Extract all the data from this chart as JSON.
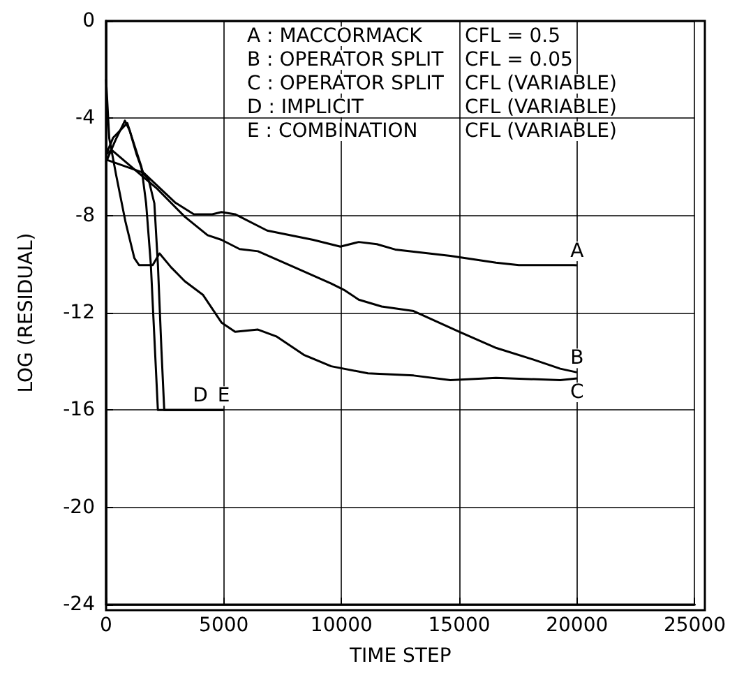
{
  "chart_data": {
    "type": "line",
    "xlabel": "TIME STEP",
    "ylabel": "LOG (RESIDUAL)",
    "xlim": [
      0,
      25000
    ],
    "xticks": [
      0,
      5000,
      10000,
      15000,
      20000,
      25000
    ],
    "ylim": [
      -24,
      0
    ],
    "yticks": [
      -24,
      -20,
      -16,
      -12,
      -8,
      -4,
      0
    ],
    "grid": true,
    "marker": "none",
    "line_style": "solid",
    "series": [
      {
        "name": "A",
        "color": "#000000",
        "x": [
          0,
          1600,
          2950,
          3730,
          4510,
          4900,
          5480,
          6840,
          8790,
          9950,
          10730,
          11500,
          12280,
          14620,
          16560,
          17530,
          19860,
          20000
        ],
        "values": [
          -5.7,
          -6.25,
          -7.48,
          -7.95,
          -7.95,
          -7.86,
          -7.95,
          -8.62,
          -9.0,
          -9.28,
          -9.09,
          -9.18,
          -9.4,
          -9.66,
          -9.94,
          -10.04,
          -10.04,
          -10.05
        ]
      },
      {
        "name": "B",
        "color": "#000000",
        "x": [
          0,
          230,
          2180,
          3340,
          4310,
          4900,
          5670,
          6450,
          8000,
          9560,
          10140,
          10730,
          11700,
          13060,
          15040,
          16580,
          18130,
          19290,
          20000
        ],
        "values": [
          -5.5,
          -5.3,
          -6.91,
          -8.05,
          -8.81,
          -9.0,
          -9.38,
          -9.47,
          -10.13,
          -10.8,
          -11.08,
          -11.46,
          -11.74,
          -11.93,
          -12.8,
          -13.45,
          -13.92,
          -14.3,
          -14.45
        ]
      },
      {
        "name": "C",
        "color": "#000000",
        "x": [
          0,
          135,
          430,
          820,
          1200,
          1400,
          1980,
          2270,
          2760,
          3340,
          4120,
          4900,
          5480,
          6450,
          7230,
          8400,
          9560,
          11120,
          13060,
          14620,
          16560,
          19290,
          20000
        ],
        "values": [
          -2.4,
          -4.83,
          -6.35,
          -8.24,
          -9.75,
          -10.04,
          -10.04,
          -9.56,
          -10.13,
          -10.7,
          -11.27,
          -12.4,
          -12.78,
          -12.69,
          -12.97,
          -13.73,
          -14.2,
          -14.49,
          -14.58,
          -14.77,
          -14.68,
          -14.77,
          -14.7
        ]
      },
      {
        "name": "D",
        "color": "#000000",
        "x": [
          0,
          300,
          600,
          900,
          1200,
          1500,
          1700,
          1900,
          2050,
          2200,
          3000,
          5000
        ],
        "values": [
          -5.5,
          -4.8,
          -4.5,
          -4.2,
          -5.1,
          -6.0,
          -7.5,
          -10,
          -13,
          -16,
          -16,
          -16
        ]
      },
      {
        "name": "E",
        "color": "#000000",
        "x": [
          0,
          400,
          800,
          1000,
          1300,
          1600,
          1800,
          2050,
          2200,
          2350,
          2470,
          5000
        ],
        "values": [
          -5.8,
          -4.9,
          -4.1,
          -4.5,
          -5.5,
          -6.3,
          -6.5,
          -7.5,
          -10,
          -13.5,
          -16,
          -16
        ]
      }
    ],
    "annotations": [
      "A : MACCORMACK",
      "CFL = 0.5",
      "B : OPERATOR SPLIT",
      "CFL = 0.05",
      "C : OPERATOR SPLIT",
      "CFL (VARIABLE)",
      "D : IMPLICIT",
      "CFL (VARIABLE)",
      "E : COMBINATION",
      "CFL (VARIABLE)"
    ]
  }
}
